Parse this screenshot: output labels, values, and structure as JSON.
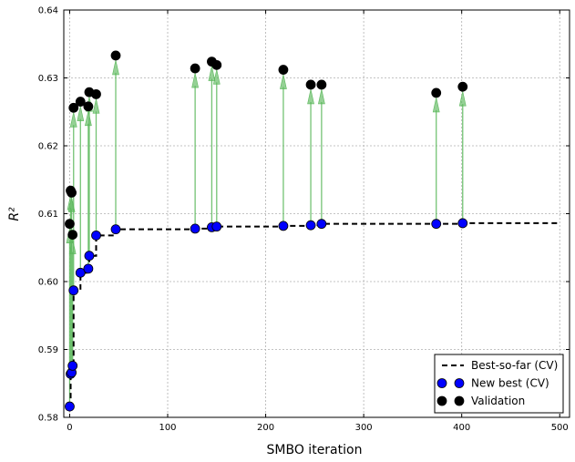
{
  "chart_data": {
    "type": "scatter",
    "xlabel": "SMBO iteration",
    "ylabel": "R²",
    "xlim": [
      -6,
      510
    ],
    "ylim": [
      0.58,
      0.64
    ],
    "xticks": [
      0,
      100,
      200,
      300,
      400,
      500
    ],
    "xtick_labels": [
      "0",
      "100",
      "200",
      "300",
      "400",
      "500"
    ],
    "yticks": [
      0.58,
      0.59,
      0.6,
      0.61,
      0.62,
      0.63,
      0.64
    ],
    "ytick_labels": [
      "0.58",
      "0.59",
      "0.60",
      "0.61",
      "0.62",
      "0.63",
      "0.64"
    ],
    "grid": true,
    "legend_position": "bottom-right",
    "colors": {
      "best_so_far": "#000000",
      "new_best": "#0000ff",
      "validation": "#000000",
      "arrow": "#5cb85c"
    },
    "series": [
      {
        "name": "Best-so-far (CV)",
        "kind": "step-dashed",
        "x": [
          0,
          1,
          2,
          3,
          4,
          11,
          19,
          20,
          27,
          47,
          128,
          145,
          150,
          218,
          246,
          257,
          374,
          401,
          500
        ],
        "y": [
          0.5816,
          0.5864,
          0.5866,
          0.5876,
          0.5987,
          0.6013,
          0.6019,
          0.6038,
          0.6068,
          0.6077,
          0.6078,
          0.608,
          0.6081,
          0.6082,
          0.6083,
          0.6085,
          0.6085,
          0.6086,
          0.6086
        ]
      },
      {
        "name": "New best (CV)",
        "kind": "marker",
        "x": [
          0,
          1,
          2,
          3,
          4,
          11,
          19,
          20,
          27,
          47,
          128,
          145,
          150,
          218,
          246,
          257,
          374,
          401
        ],
        "y": [
          0.5816,
          0.5864,
          0.5866,
          0.5876,
          0.5987,
          0.6013,
          0.6019,
          0.6038,
          0.6068,
          0.6077,
          0.6078,
          0.608,
          0.6081,
          0.6082,
          0.6083,
          0.6085,
          0.6085,
          0.6086
        ]
      },
      {
        "name": "Validation",
        "kind": "marker",
        "x": [
          0,
          1,
          2,
          3,
          4,
          11,
          19,
          20,
          27,
          47,
          128,
          145,
          150,
          218,
          246,
          257,
          374,
          401
        ],
        "y": [
          0.6085,
          0.6134,
          0.6131,
          0.6069,
          0.6256,
          0.6265,
          0.6258,
          0.6279,
          0.6276,
          0.6333,
          0.6314,
          0.6324,
          0.6319,
          0.6312,
          0.629,
          0.629,
          0.6278,
          0.6287
        ]
      }
    ],
    "legend": [
      {
        "label": "Best-so-far (CV)",
        "key": "best_so_far"
      },
      {
        "label": "New best (CV)",
        "key": "new_best"
      },
      {
        "label": "Validation",
        "key": "validation"
      }
    ]
  }
}
